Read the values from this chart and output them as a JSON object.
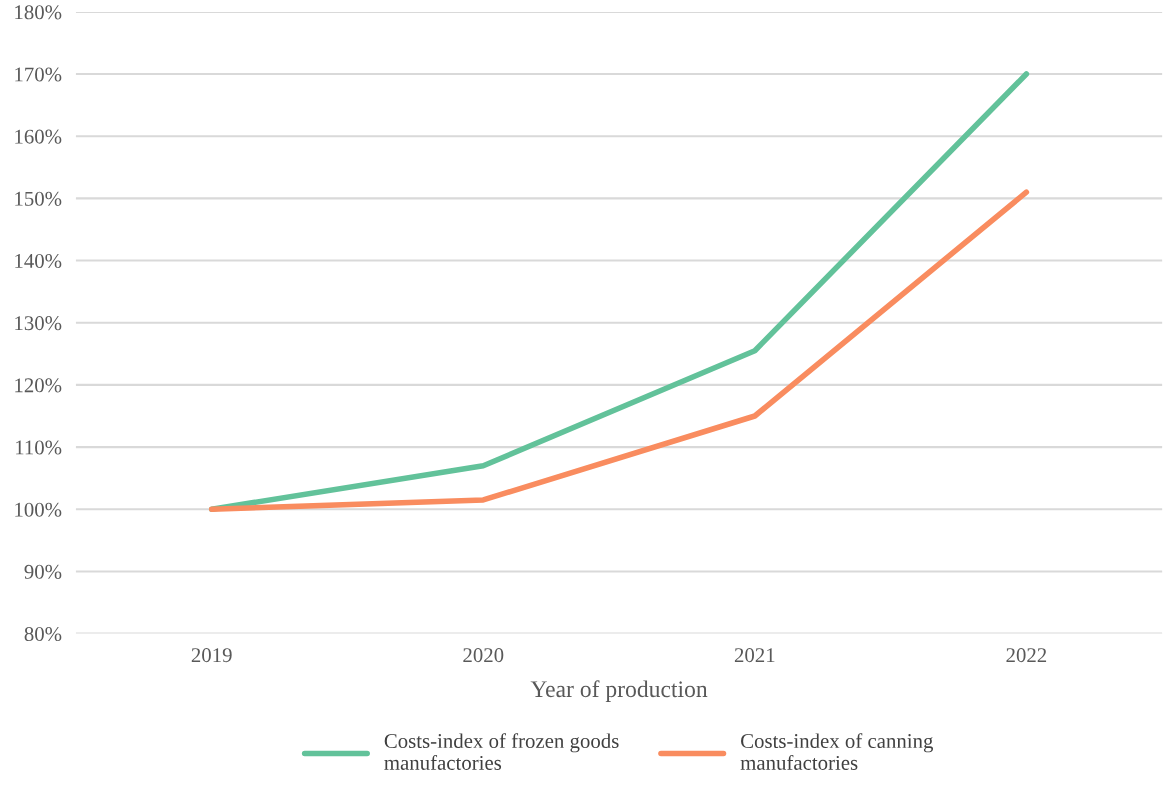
{
  "chart_data": {
    "type": "line",
    "xlabel": "Year of production",
    "categories": [
      "2019",
      "2020",
      "2021",
      "2022"
    ],
    "series": [
      {
        "name": "Costs-index of frozen goods\nmanufactories",
        "color": "#62c29a",
        "values": [
          100,
          107,
          125.5,
          170
        ]
      },
      {
        "name": "Costs-index of canning\nmanufactories",
        "color": "#f98c5f",
        "values": [
          100,
          101.5,
          115,
          151
        ]
      }
    ],
    "ylim": [
      80,
      180
    ],
    "yticks": [
      {
        "value": 80,
        "label": "80%"
      },
      {
        "value": 90,
        "label": "90%"
      },
      {
        "value": 100,
        "label": "100%"
      },
      {
        "value": 110,
        "label": "110%"
      },
      {
        "value": 120,
        "label": "120%"
      },
      {
        "value": 130,
        "label": "130%"
      },
      {
        "value": 140,
        "label": "140%"
      },
      {
        "value": 150,
        "label": "150%"
      },
      {
        "value": 160,
        "label": "160%"
      },
      {
        "value": 170,
        "label": "170%"
      },
      {
        "value": 180,
        "label": "180%"
      }
    ],
    "grid": "y",
    "legend": "bottom",
    "marker": "none",
    "line_style": "solid"
  }
}
